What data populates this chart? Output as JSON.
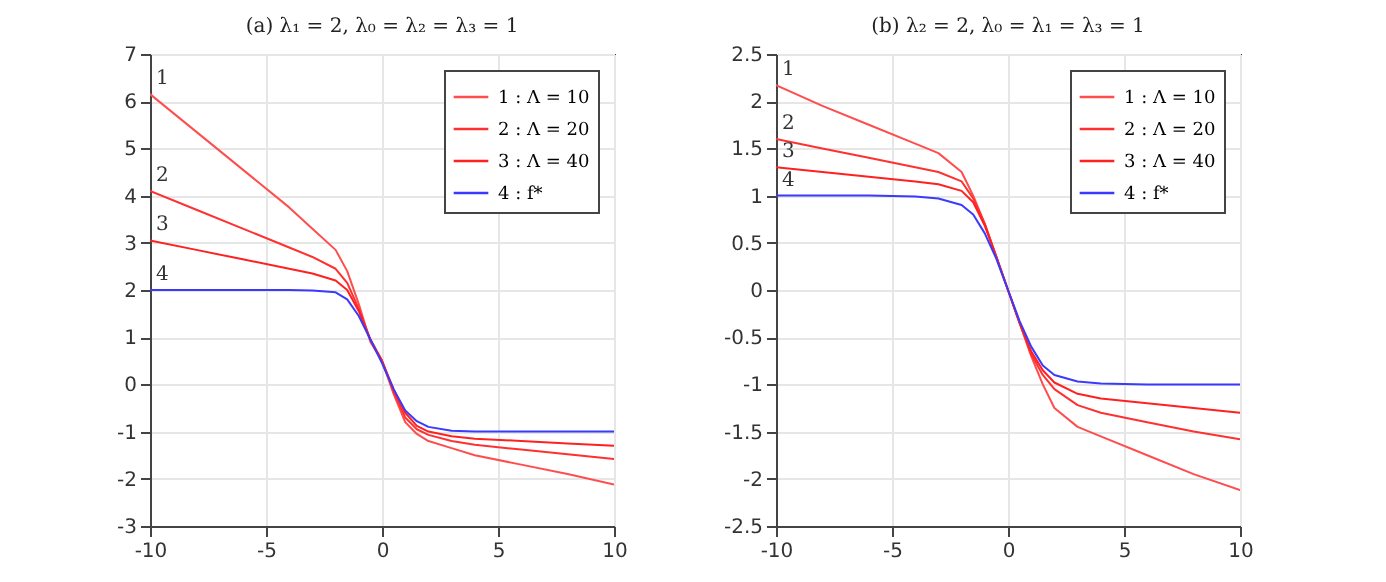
{
  "chart_data": [
    {
      "type": "line",
      "title": "(a) λ₁ = 2, λ₀ = λ₂ = λ₃ = 1",
      "x": [
        -10,
        -8,
        -6,
        -4,
        -3,
        -2,
        -1.5,
        -1,
        -0.5,
        0,
        0.5,
        1,
        1.5,
        2,
        3,
        4,
        6,
        8,
        10
      ],
      "series": [
        {
          "name": "1 : Λ = 10",
          "color": "#ff4d4d",
          "values": [
            6.15,
            5.35,
            4.55,
            3.75,
            3.3,
            2.85,
            2.4,
            1.7,
            0.9,
            0.5,
            -0.2,
            -0.8,
            -1.05,
            -1.2,
            -1.35,
            -1.5,
            -1.7,
            -1.9,
            -2.12
          ]
        },
        {
          "name": "2 : Λ = 20",
          "color": "#ff3030",
          "values": [
            4.1,
            3.7,
            3.3,
            2.9,
            2.7,
            2.45,
            2.15,
            1.6,
            0.95,
            0.5,
            -0.15,
            -0.7,
            -0.95,
            -1.07,
            -1.2,
            -1.28,
            -1.38,
            -1.48,
            -1.58
          ]
        },
        {
          "name": "3 : Λ = 40",
          "color": "#ff2020",
          "values": [
            3.05,
            2.85,
            2.65,
            2.45,
            2.35,
            2.2,
            2.0,
            1.55,
            0.95,
            0.5,
            -0.1,
            -0.6,
            -0.88,
            -1.0,
            -1.1,
            -1.15,
            -1.2,
            -1.25,
            -1.3
          ]
        },
        {
          "name": "4 : f*",
          "color": "#3a3aff",
          "values": [
            2,
            2,
            2,
            2,
            1.99,
            1.95,
            1.8,
            1.45,
            0.95,
            0.45,
            -0.1,
            -0.55,
            -0.78,
            -0.9,
            -0.98,
            -1,
            -1,
            -1,
            -1
          ]
        }
      ],
      "xlim": [
        -10,
        10
      ],
      "xticks": [
        -10,
        -5,
        0,
        5,
        10
      ],
      "ylim": [
        -3,
        7
      ],
      "yticks": [
        -3,
        -2,
        -1,
        0,
        1,
        2,
        3,
        4,
        5,
        6,
        7
      ],
      "annotations": [
        "1",
        "2",
        "3",
        "4"
      ],
      "grid": true,
      "legend": "top right",
      "line_style": "solid"
    },
    {
      "type": "line",
      "title": "(b) λ₂ = 2, λ₀ = λ₁ = λ₃ = 1",
      "x": [
        -10,
        -8,
        -6,
        -4,
        -3,
        -2,
        -1.5,
        -1,
        -0.5,
        0,
        0.5,
        1,
        1.5,
        2,
        3,
        4,
        6,
        8,
        10
      ],
      "series": [
        {
          "name": "1 : Λ = 10",
          "color": "#ff4d4d",
          "values": [
            2.17,
            1.95,
            1.75,
            1.55,
            1.45,
            1.25,
            1.0,
            0.7,
            0.35,
            0,
            -0.35,
            -0.7,
            -1.0,
            -1.25,
            -1.45,
            -1.55,
            -1.75,
            -1.95,
            -2.12
          ]
        },
        {
          "name": "2 : Λ = 20",
          "color": "#ff3030",
          "values": [
            1.6,
            1.5,
            1.4,
            1.3,
            1.25,
            1.15,
            0.97,
            0.7,
            0.35,
            0,
            -0.35,
            -0.68,
            -0.9,
            -1.05,
            -1.22,
            -1.3,
            -1.4,
            -1.5,
            -1.58
          ]
        },
        {
          "name": "3 : Λ = 40",
          "color": "#ff2020",
          "values": [
            1.3,
            1.25,
            1.2,
            1.15,
            1.12,
            1.05,
            0.93,
            0.68,
            0.35,
            0,
            -0.35,
            -0.65,
            -0.85,
            -0.98,
            -1.1,
            -1.15,
            -1.2,
            -1.25,
            -1.3
          ]
        },
        {
          "name": "4 : f*",
          "color": "#3a3aff",
          "values": [
            1,
            1,
            1,
            0.99,
            0.97,
            0.9,
            0.8,
            0.6,
            0.33,
            0,
            -0.33,
            -0.6,
            -0.8,
            -0.9,
            -0.97,
            -0.99,
            -1,
            -1,
            -1
          ]
        }
      ],
      "xlim": [
        -10,
        10
      ],
      "xticks": [
        -10,
        -5,
        0,
        5,
        10
      ],
      "ylim": [
        -2.5,
        2.5
      ],
      "yticks": [
        -2.5,
        -2,
        -1.5,
        -1,
        -0.5,
        0,
        0.5,
        1,
        1.5,
        2,
        2.5
      ],
      "annotations": [
        "1",
        "2",
        "3",
        "4"
      ],
      "grid": true,
      "legend": "top right",
      "line_style": "solid"
    }
  ]
}
